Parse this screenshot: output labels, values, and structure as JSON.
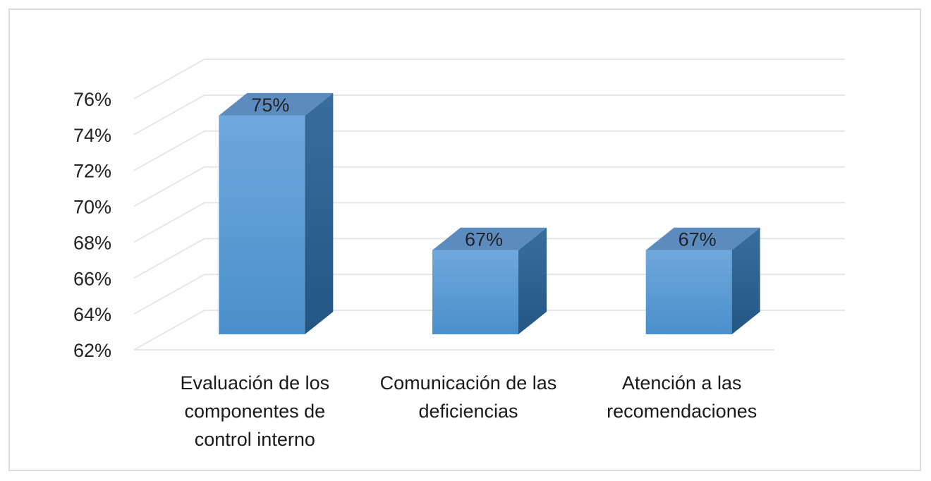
{
  "chart_data": {
    "type": "bar",
    "categories": [
      [
        "Evaluación de los",
        "componentes de",
        "control interno"
      ],
      [
        "Comunicación de las",
        "deficiencias"
      ],
      [
        "Atención a las",
        "recomendaciones"
      ]
    ],
    "values": [
      75,
      67,
      67
    ],
    "data_labels": [
      "75%",
      "67%",
      "67%"
    ],
    "y_ticks": [
      "62%",
      "64%",
      "66%",
      "68%",
      "70%",
      "72%",
      "74%",
      "76%"
    ],
    "ylim": [
      62,
      76
    ],
    "grid": true,
    "style": "3d-column",
    "colors": {
      "front_top": "#6fa8dc",
      "front_bottom": "#4a8fcb",
      "side": "#2e6293",
      "top": "#5b8bbf",
      "grid": "#e3e6ea"
    }
  }
}
